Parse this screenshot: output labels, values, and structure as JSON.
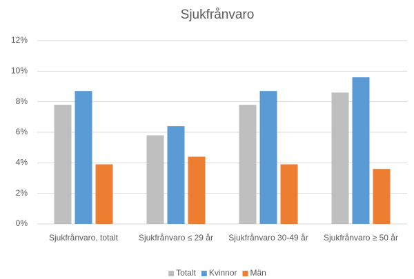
{
  "chart_data": {
    "type": "bar",
    "title": "Sjukfrånvaro",
    "categories": [
      "Sjukfrånvaro, totalt",
      "Sjukfrånvaro ≤ 29 år",
      "Sjukfrånvaro 30-49 år",
      "Sjukfrånvaro ≥ 50 år"
    ],
    "series": [
      {
        "name": "Totalt",
        "color": "#bfbfbf",
        "values": [
          7.8,
          5.8,
          7.8,
          8.6
        ]
      },
      {
        "name": "Kvinnor",
        "color": "#5b9bd5",
        "values": [
          8.7,
          6.4,
          8.7,
          9.6
        ]
      },
      {
        "name": "Män",
        "color": "#ed7d31",
        "values": [
          3.9,
          4.4,
          3.9,
          3.6
        ]
      }
    ],
    "ylim": [
      0,
      12
    ],
    "yticks": [
      {
        "value": 0,
        "label": "0%"
      },
      {
        "value": 2,
        "label": "2%"
      },
      {
        "value": 4,
        "label": "4%"
      },
      {
        "value": 6,
        "label": "6%"
      },
      {
        "value": 8,
        "label": "8%"
      },
      {
        "value": 10,
        "label": "10%"
      },
      {
        "value": 12,
        "label": "12%"
      }
    ],
    "grid": true,
    "legend": "bottom"
  }
}
